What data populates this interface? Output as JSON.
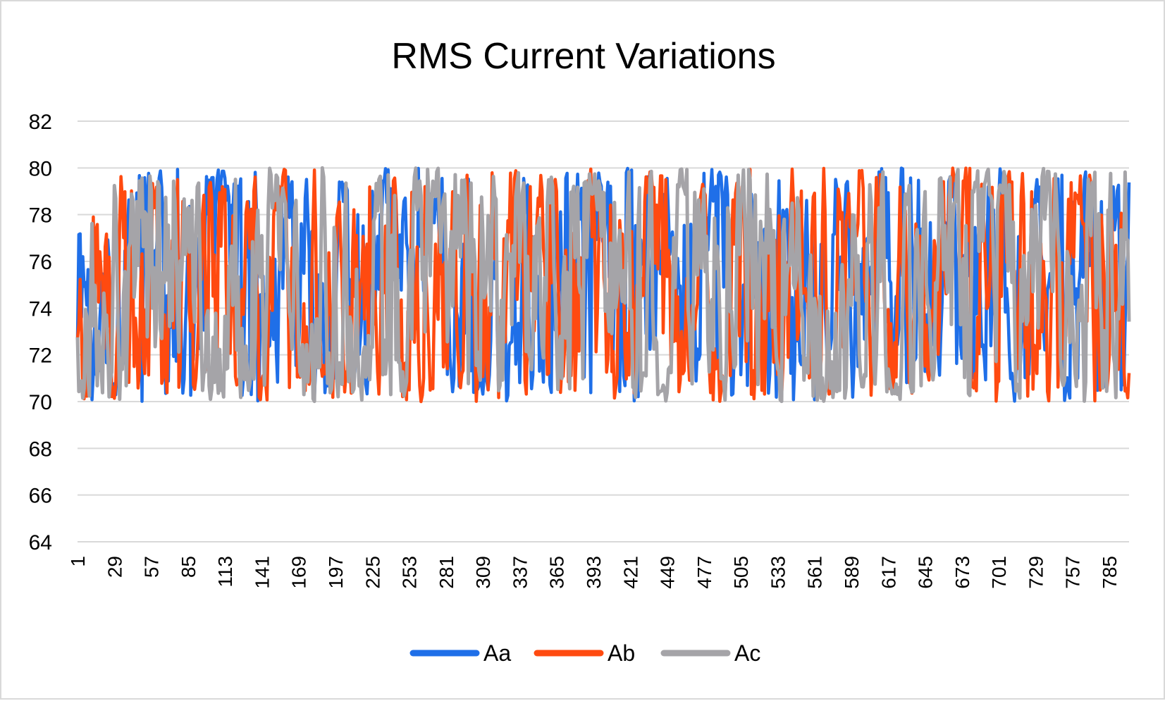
{
  "chart_data": {
    "type": "line",
    "title": "RMS Current Variations",
    "xlabel": "",
    "ylabel": "",
    "ylim": [
      64,
      82
    ],
    "yticks": [
      64,
      66,
      68,
      70,
      72,
      74,
      76,
      78,
      80,
      82
    ],
    "xlim": [
      1,
      800
    ],
    "xtick_labels": [
      "1",
      "29",
      "57",
      "85",
      "113",
      "141",
      "169",
      "197",
      "225",
      "253",
      "281",
      "309",
      "337",
      "365",
      "393",
      "421",
      "449",
      "477",
      "505",
      "533",
      "561",
      "589",
      "617",
      "645",
      "673",
      "701",
      "729",
      "757",
      "785"
    ],
    "grid": "horizontal",
    "legend_position": "bottom",
    "series": [
      {
        "name": "Aa",
        "color": "#1f6fe8",
        "pattern": {
          "n": 800,
          "min": 70,
          "max": 80,
          "mean": 75,
          "seed": 11,
          "note": ""
        },
        "values": []
      },
      {
        "name": "Ab",
        "color": "#ff4a10",
        "pattern": {
          "n": 800,
          "min": 70,
          "max": 80,
          "mean": 75,
          "seed": 23,
          "note": ""
        },
        "values": []
      },
      {
        "name": "Ac",
        "color": "#a5a4a8",
        "pattern": {
          "n": 800,
          "min": 70,
          "max": 80,
          "mean": 75,
          "seed": 37,
          "note": ""
        },
        "values": []
      }
    ]
  }
}
